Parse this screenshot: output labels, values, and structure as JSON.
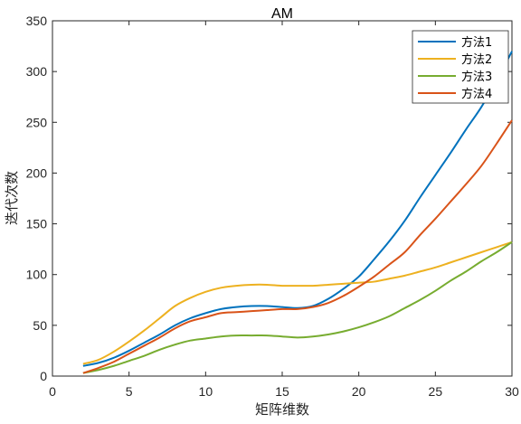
{
  "chart_data": {
    "type": "line",
    "title": "AM",
    "xlabel": "矩阵维数",
    "ylabel": "迭代次数",
    "xlim": [
      0,
      30
    ],
    "ylim": [
      0,
      350
    ],
    "xticks": [
      0,
      5,
      10,
      15,
      20,
      25,
      30
    ],
    "yticks": [
      0,
      50,
      100,
      150,
      200,
      250,
      300,
      350
    ],
    "grid": false,
    "legend_position": "top-right",
    "x": [
      2,
      3,
      4,
      5,
      6,
      7,
      8,
      9,
      10,
      11,
      12,
      13,
      14,
      15,
      16,
      17,
      18,
      19,
      20,
      21,
      22,
      23,
      24,
      25,
      26,
      27,
      28,
      29,
      30
    ],
    "series": [
      {
        "name": "方法1",
        "color": "#0072BD",
        "values": [
          10,
          13,
          18,
          25,
          33,
          41,
          50,
          57,
          62,
          66,
          68,
          69,
          69,
          68,
          67,
          69,
          76,
          86,
          98,
          115,
          133,
          153,
          176,
          198,
          220,
          243,
          265,
          291,
          320
        ]
      },
      {
        "name": "方法2",
        "color": "#EDB120",
        "values": [
          12,
          16,
          24,
          34,
          45,
          57,
          69,
          77,
          83,
          87,
          89,
          90,
          90,
          89,
          89,
          89,
          90,
          91,
          92,
          93,
          96,
          99,
          103,
          107,
          112,
          117,
          122,
          127,
          132
        ]
      },
      {
        "name": "方法3",
        "color": "#77AC30",
        "values": [
          3,
          6,
          10,
          15,
          20,
          26,
          31,
          35,
          37,
          39,
          40,
          40,
          40,
          39,
          38,
          39,
          41,
          44,
          48,
          53,
          59,
          67,
          75,
          84,
          94,
          103,
          113,
          122,
          132
        ]
      },
      {
        "name": "方法4",
        "color": "#D95319",
        "values": [
          3,
          8,
          14,
          22,
          30,
          38,
          47,
          54,
          58,
          62,
          63,
          64,
          65,
          66,
          66,
          68,
          72,
          79,
          88,
          98,
          110,
          122,
          139,
          155,
          172,
          189,
          207,
          229,
          252
        ]
      }
    ]
  }
}
